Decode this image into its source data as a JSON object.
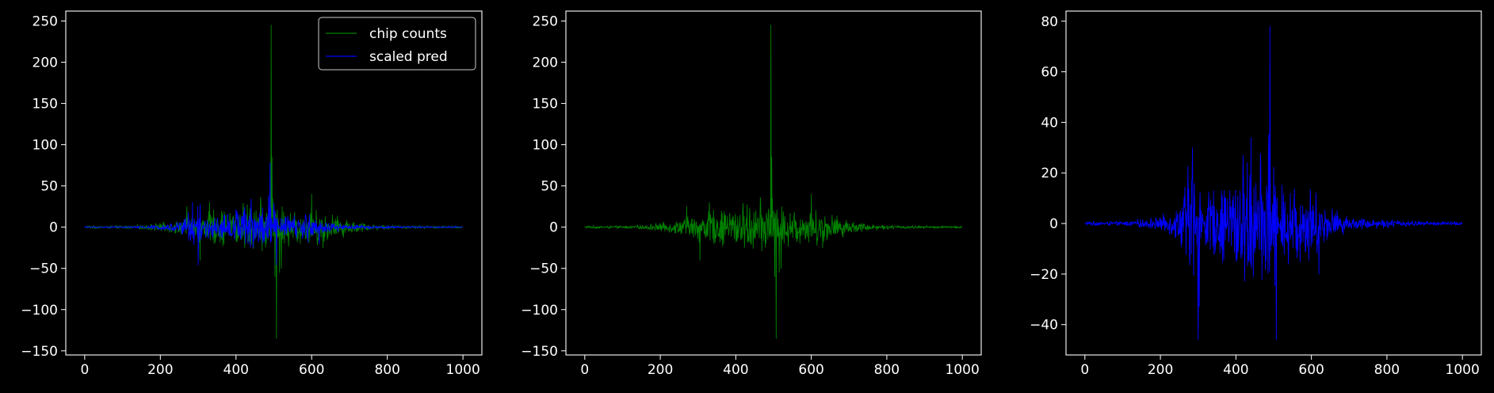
{
  "colors": {
    "background": "#000000",
    "axes": "#ffffff",
    "green": "#008000",
    "blue": "#0000ff"
  },
  "chart_data": [
    {
      "type": "line",
      "title": "",
      "xlabel": "",
      "ylabel": "",
      "xlim": [
        -50,
        1050
      ],
      "ylim": [
        -155,
        262
      ],
      "xticks": [
        0,
        200,
        400,
        600,
        800,
        1000
      ],
      "yticks": [
        -150,
        -100,
        -50,
        0,
        50,
        100,
        150,
        200,
        250
      ],
      "legend": "top-right",
      "series": [
        {
          "name": "chip counts",
          "color": "#008000",
          "n": 1000,
          "envelope": [
            [
              0,
              2
            ],
            [
              100,
              2
            ],
            [
              150,
              3
            ],
            [
              200,
              6
            ],
            [
              250,
              10
            ],
            [
              300,
              20
            ],
            [
              350,
              25
            ],
            [
              400,
              30
            ],
            [
              450,
              35
            ],
            [
              480,
              40
            ],
            [
              500,
              40
            ],
            [
              520,
              30
            ],
            [
              550,
              25
            ],
            [
              600,
              25
            ],
            [
              650,
              20
            ],
            [
              700,
              10
            ],
            [
              750,
              5
            ],
            [
              800,
              3
            ],
            [
              900,
              2
            ],
            [
              1000,
              2
            ]
          ],
          "spikes": [
            [
              493,
              245
            ],
            [
              495,
              85
            ],
            [
              503,
              -60
            ],
            [
              507,
              -135
            ],
            [
              515,
              -55
            ],
            [
              520,
              -50
            ],
            [
              270,
              25
            ],
            [
              305,
              -40
            ],
            [
              330,
              30
            ],
            [
              600,
              40
            ],
            [
              630,
              -25
            ]
          ]
        },
        {
          "name": "scaled pred",
          "color": "#0000ff",
          "n": 1000,
          "envelope": [
            [
              0,
              1
            ],
            [
              100,
              1
            ],
            [
              150,
              2
            ],
            [
              200,
              3
            ],
            [
              250,
              8
            ],
            [
              275,
              28
            ],
            [
              290,
              30
            ],
            [
              300,
              -46
            ],
            [
              320,
              15
            ],
            [
              350,
              15
            ],
            [
              400,
              25
            ],
            [
              420,
              30
            ],
            [
              450,
              28
            ],
            [
              480,
              30
            ],
            [
              490,
              78
            ],
            [
              500,
              -46
            ],
            [
              520,
              18
            ],
            [
              600,
              20
            ],
            [
              620,
              10
            ],
            [
              650,
              8
            ],
            [
              700,
              3
            ],
            [
              800,
              2
            ],
            [
              900,
              1
            ],
            [
              1000,
              1
            ]
          ],
          "spikes": [
            [
              490,
              78
            ],
            [
              300,
              -46
            ],
            [
              507,
              -46
            ],
            [
              285,
              30
            ],
            [
              440,
              34
            ],
            [
              620,
              -20
            ]
          ]
        }
      ]
    },
    {
      "type": "line",
      "title": "",
      "xlabel": "",
      "ylabel": "",
      "xlim": [
        -50,
        1050
      ],
      "ylim": [
        -155,
        262
      ],
      "xticks": [
        0,
        200,
        400,
        600,
        800,
        1000
      ],
      "yticks": [
        -150,
        -100,
        -50,
        0,
        50,
        100,
        150,
        200,
        250
      ],
      "legend": "none",
      "series": [
        {
          "name": "",
          "color": "#008000",
          "n": 1000,
          "envelope": [
            [
              0,
              2
            ],
            [
              100,
              2
            ],
            [
              150,
              3
            ],
            [
              200,
              6
            ],
            [
              250,
              10
            ],
            [
              300,
              20
            ],
            [
              350,
              25
            ],
            [
              400,
              30
            ],
            [
              450,
              35
            ],
            [
              480,
              40
            ],
            [
              500,
              40
            ],
            [
              520,
              30
            ],
            [
              550,
              25
            ],
            [
              600,
              25
            ],
            [
              650,
              20
            ],
            [
              700,
              10
            ],
            [
              750,
              5
            ],
            [
              800,
              3
            ],
            [
              900,
              2
            ],
            [
              1000,
              2
            ]
          ],
          "spikes": [
            [
              493,
              245
            ],
            [
              495,
              85
            ],
            [
              503,
              -60
            ],
            [
              507,
              -135
            ],
            [
              515,
              -55
            ],
            [
              520,
              -50
            ],
            [
              270,
              25
            ],
            [
              305,
              -40
            ],
            [
              330,
              30
            ],
            [
              600,
              40
            ],
            [
              630,
              -25
            ]
          ]
        }
      ]
    },
    {
      "type": "line",
      "title": "",
      "xlabel": "",
      "ylabel": "",
      "xlim": [
        -50,
        1050
      ],
      "ylim": [
        -52,
        84
      ],
      "xticks": [
        0,
        200,
        400,
        600,
        800,
        1000
      ],
      "yticks": [
        -40,
        -20,
        0,
        20,
        40,
        60,
        80
      ],
      "legend": "none",
      "series": [
        {
          "name": "",
          "color": "#0000ff",
          "n": 1000,
          "envelope": [
            [
              0,
              1
            ],
            [
              100,
              1
            ],
            [
              150,
              2
            ],
            [
              200,
              3
            ],
            [
              250,
              8
            ],
            [
              275,
              28
            ],
            [
              290,
              30
            ],
            [
              300,
              -46
            ],
            [
              320,
              15
            ],
            [
              350,
              15
            ],
            [
              400,
              25
            ],
            [
              420,
              30
            ],
            [
              450,
              28
            ],
            [
              480,
              30
            ],
            [
              490,
              78
            ],
            [
              500,
              -46
            ],
            [
              520,
              18
            ],
            [
              600,
              20
            ],
            [
              620,
              10
            ],
            [
              650,
              8
            ],
            [
              700,
              3
            ],
            [
              800,
              2
            ],
            [
              900,
              1
            ],
            [
              1000,
              1
            ]
          ],
          "spikes": [
            [
              490,
              78
            ],
            [
              300,
              -46
            ],
            [
              507,
              -46
            ],
            [
              285,
              30
            ],
            [
              440,
              34
            ],
            [
              620,
              -20
            ]
          ]
        }
      ]
    }
  ]
}
